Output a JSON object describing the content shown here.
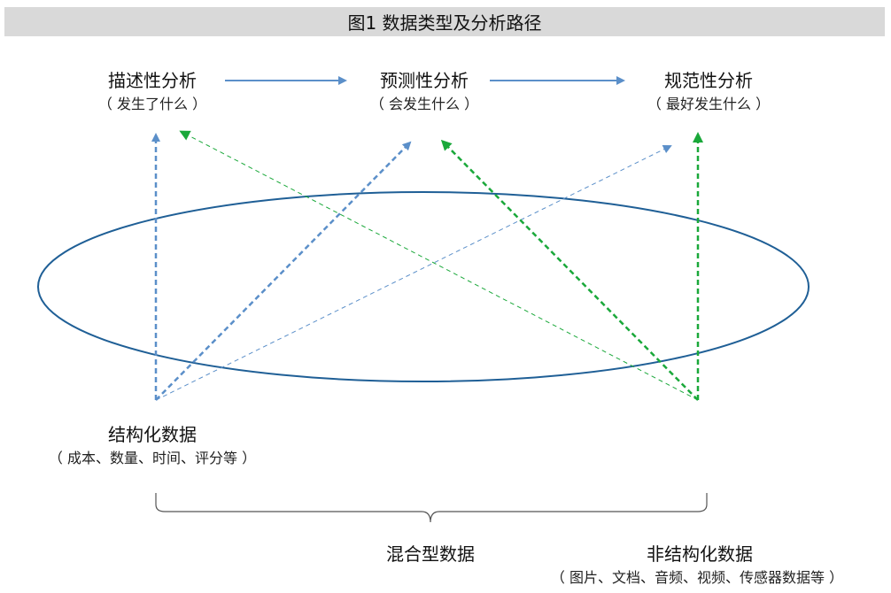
{
  "title": "图1  数据类型及分析路径",
  "analysis": {
    "descriptive": {
      "label": "描述性分析",
      "sub": "（ 发生了什么 ）"
    },
    "predictive": {
      "label": "预测性分析",
      "sub": "（ 会发生什么 ）"
    },
    "prescriptive": {
      "label": "规范性分析",
      "sub": "（ 最好发生什么 ）"
    }
  },
  "data_types": {
    "structured": {
      "label": "结构化数据",
      "sub": "（ 成本、数量、时间、评分等 ）"
    },
    "mixed": {
      "label": "混合型数据"
    },
    "unstructured": {
      "label": "非结构化数据",
      "sub": "（ 图片、文档、音频、视频、传感器数据等 ）"
    }
  },
  "colors": {
    "blue_arrow": "#5b8fc9",
    "green_arrow": "#1aa83a",
    "ellipse": "#1f5f96",
    "title_bg": "#d9d9d9"
  }
}
